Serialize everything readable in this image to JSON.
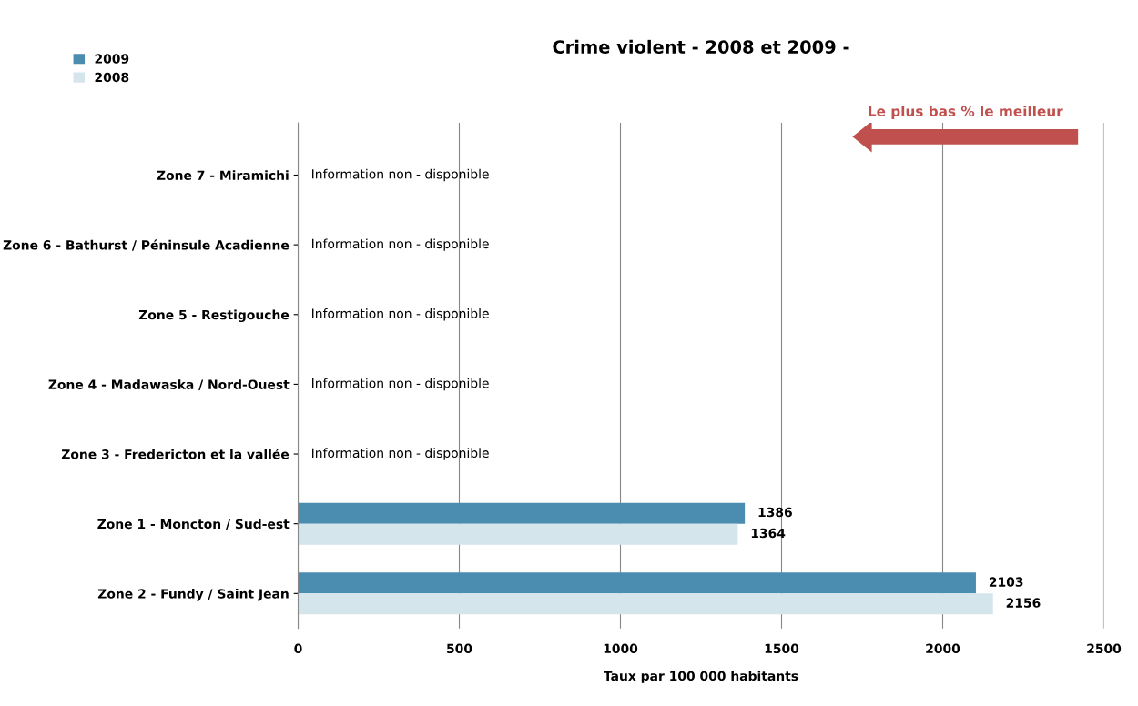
{
  "chart_data": {
    "type": "bar",
    "orientation": "horizontal",
    "title": "Crime violent - 2008 et 2009 -",
    "xlabel": "Taux par 100 000 habitants",
    "categories": [
      "Zone 7 - Miramichi",
      "Zone 6 - Bathurst / Péninsule Acadienne",
      "Zone 5 - Restigouche",
      "Zone 4 - Madawaska / Nord-Ouest",
      "Zone 3 - Fredericton et la vallée",
      "Zone 1 - Moncton / Sud-est",
      "Zone 2 - Fundy / Saint Jean"
    ],
    "series": [
      {
        "name": "2009",
        "color": "#4a8db0",
        "values": [
          null,
          null,
          null,
          null,
          null,
          1386,
          2103
        ]
      },
      {
        "name": "2008",
        "color": "#d5e5ec",
        "values": [
          null,
          null,
          null,
          null,
          null,
          1364,
          2156
        ]
      }
    ],
    "xlim": [
      0,
      2500
    ],
    "xticks": [
      0,
      500,
      1000,
      1500,
      2000,
      2500
    ],
    "grid": "x",
    "legend": "top left",
    "data_labels": true,
    "annotations": [
      "Le plus bas % le meilleur",
      "Information non - disponible",
      "Information non - disponible",
      "Information non - disponible",
      "Information non - disponible",
      "Information non - disponible"
    ]
  }
}
